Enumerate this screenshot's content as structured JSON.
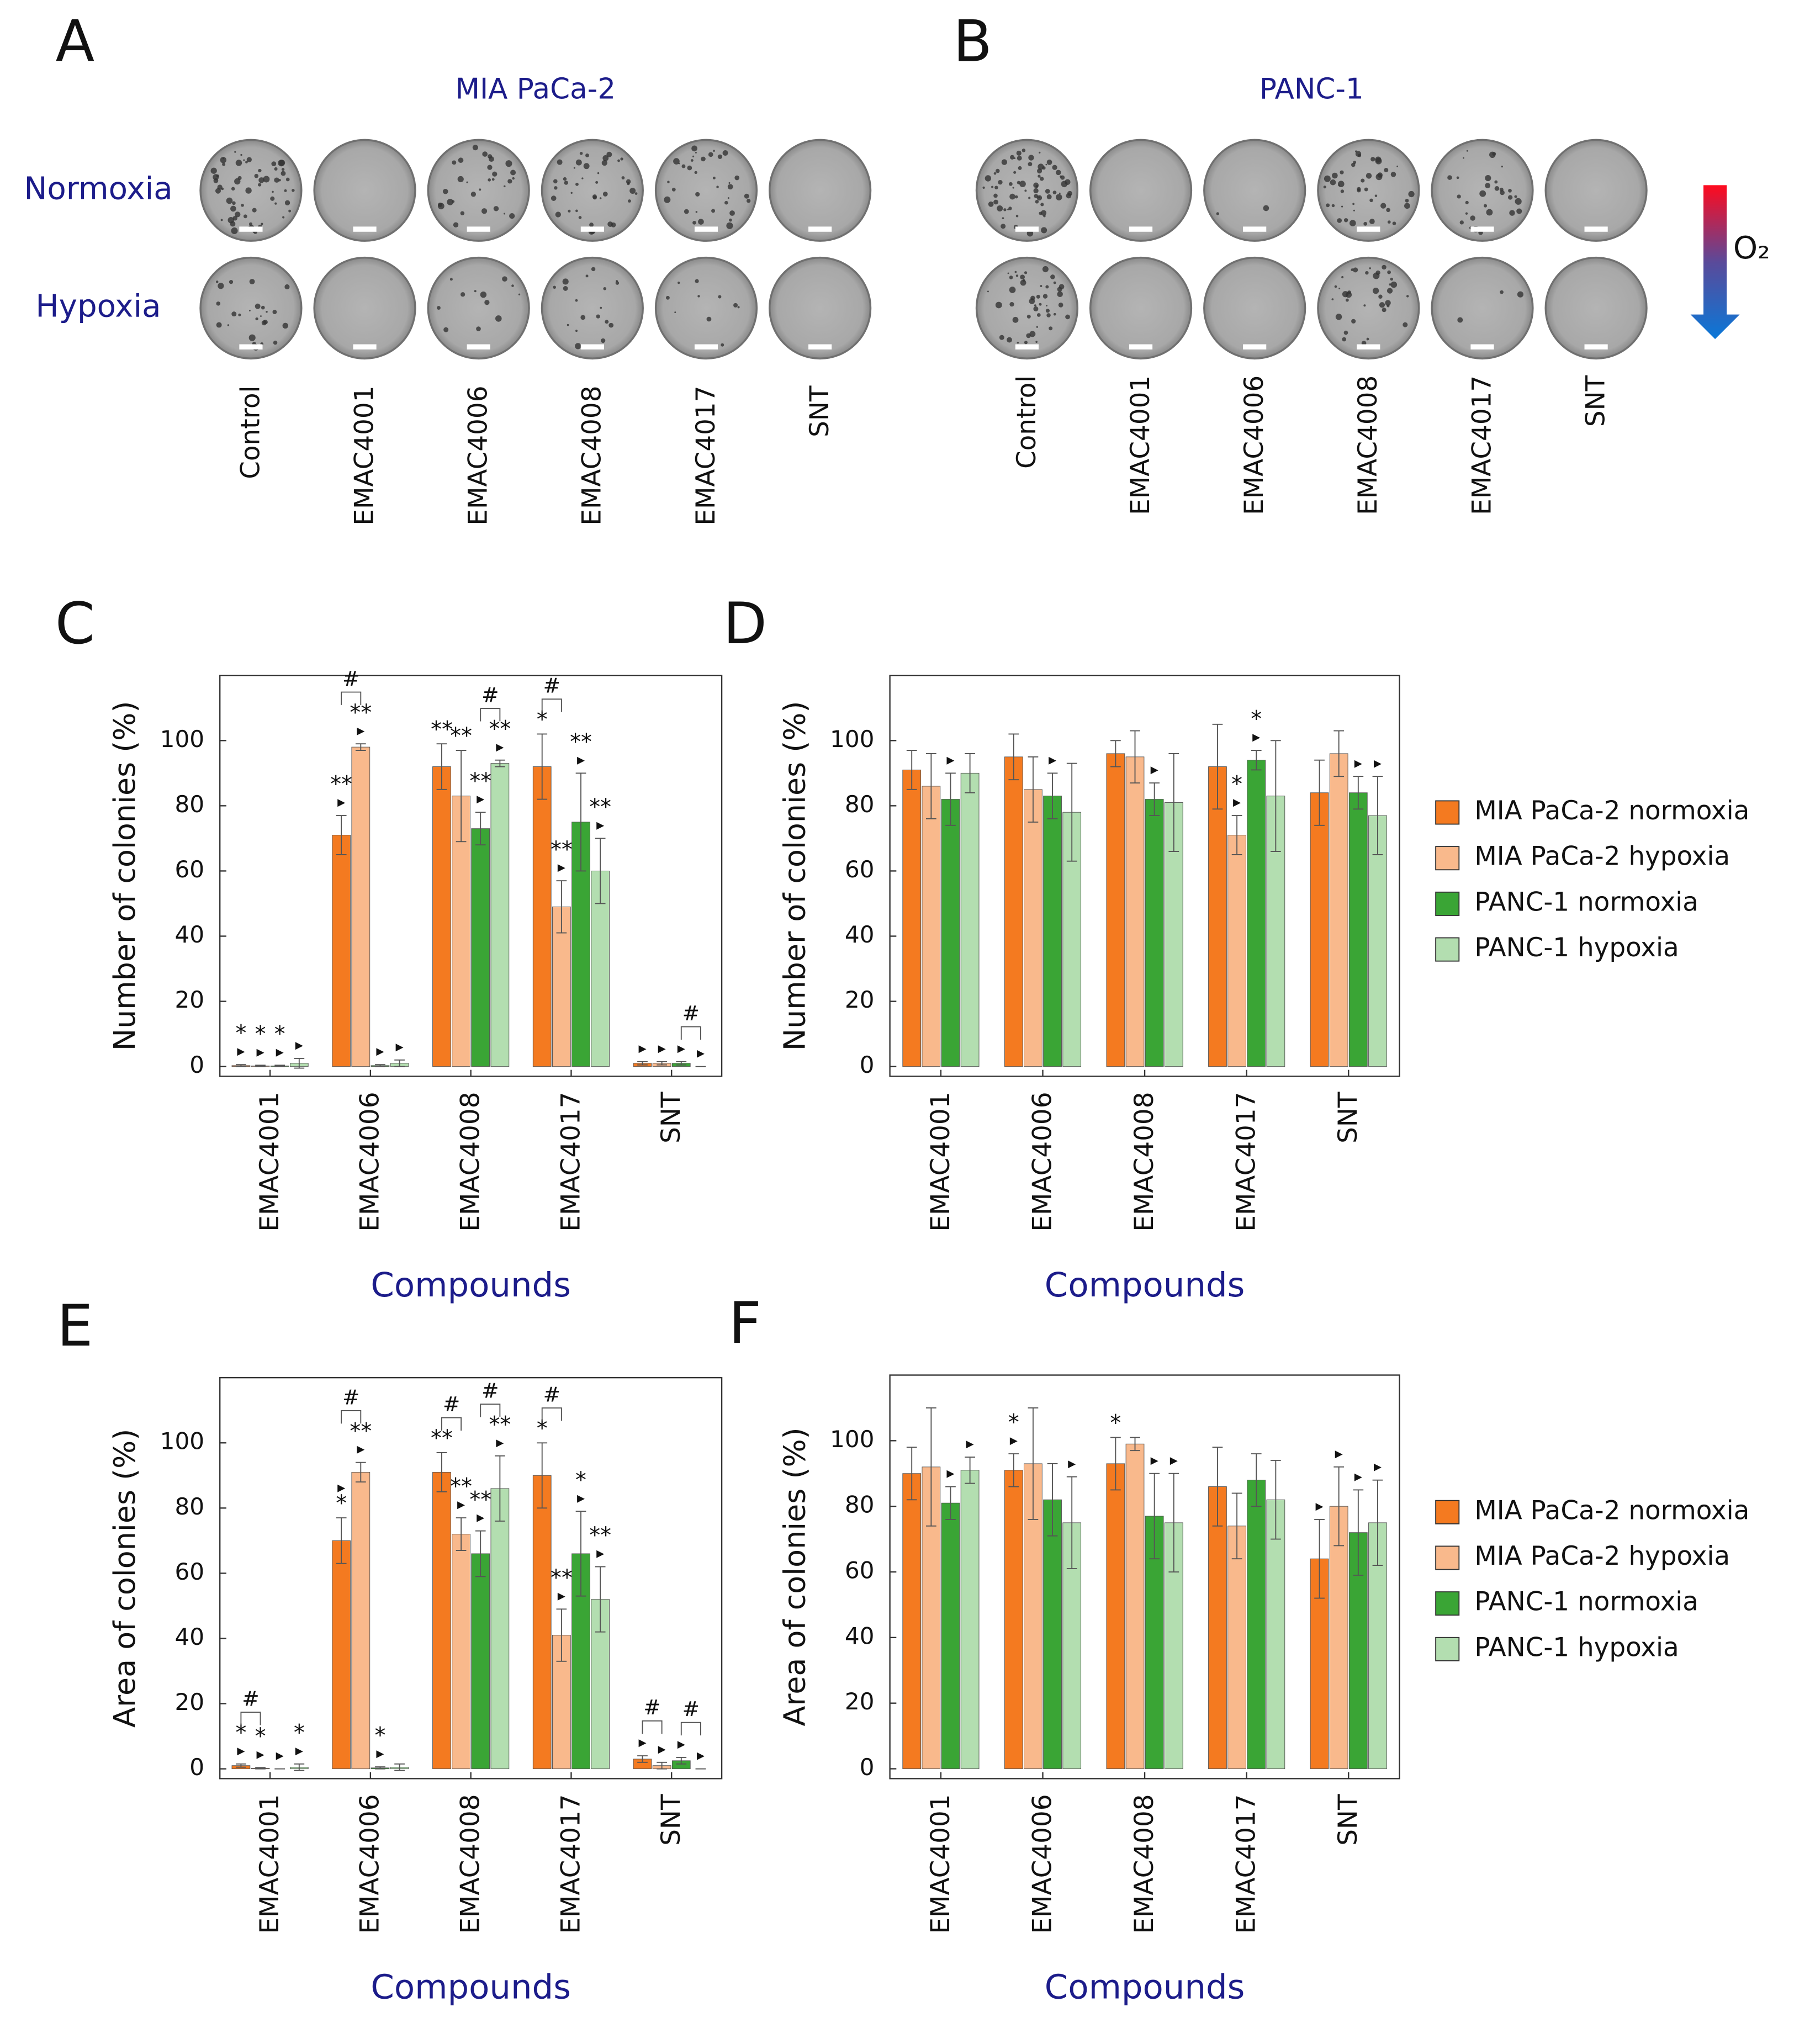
{
  "images": [
    {
      "label": "A",
      "title": "MIA PaCa-2",
      "columns": [
        "Control",
        "EMAC4001",
        "EMAC4006",
        "EMAC4008",
        "EMAC4017",
        "SNT"
      ]
    },
    {
      "label": "B",
      "title": "PANC-1",
      "columns": [
        "Control",
        "EMAC4001",
        "EMAC4006",
        "EMAC4008",
        "EMAC4017",
        "SNT"
      ]
    }
  ],
  "row_labels": [
    "Normoxia",
    "Hypoxia"
  ],
  "o2_label": "O₂",
  "chart_data": [
    {
      "label": "C",
      "type": "bar",
      "ylabel": "Number of colonies (%)",
      "xlabel": "Compounds",
      "categories": [
        "EMAC4001",
        "EMAC4006",
        "EMAC4008",
        "EMAC4017",
        "SNT"
      ],
      "ylim": [
        -3,
        120
      ],
      "yticks": [
        0,
        20,
        40,
        60,
        80,
        100
      ],
      "series": [
        {
          "color": "#f47a20",
          "values": [
            0.3,
            71,
            92,
            92,
            1
          ],
          "errors": [
            0.3,
            6,
            7,
            10,
            0.5
          ],
          "marks": [
            [
              "*",
              "▸"
            ],
            [
              "**",
              "▸"
            ],
            [
              "**"
            ],
            [
              "*"
            ],
            [
              "▸"
            ]
          ]
        },
        {
          "color": "#f9b98c",
          "values": [
            0.2,
            98,
            83,
            49,
            1
          ],
          "errors": [
            0.2,
            1,
            14,
            8,
            0.5
          ],
          "marks": [
            [
              "*",
              "▸"
            ],
            [
              "**",
              "▸"
            ],
            [
              "**"
            ],
            [
              "**",
              "▸"
            ],
            [
              "▸"
            ]
          ]
        },
        {
          "color": "#3aa535",
          "values": [
            0.2,
            0.3,
            73,
            75,
            1
          ],
          "errors": [
            0.2,
            0.3,
            5,
            15,
            0.5
          ],
          "marks": [
            [
              "*",
              "▸"
            ],
            [
              "▸"
            ],
            [
              "**",
              "▸"
            ],
            [
              "**",
              "▸"
            ],
            [
              "▸"
            ]
          ]
        },
        {
          "color": "#b3deb0",
          "values": [
            1,
            1,
            93,
            60,
            0
          ],
          "errors": [
            1.5,
            1,
            1,
            10,
            0
          ],
          "marks": [
            [
              "▸"
            ],
            [
              "▸"
            ],
            [
              "**",
              "▸"
            ],
            [
              "**",
              "▸"
            ],
            [
              "▸"
            ]
          ]
        }
      ],
      "brackets": [
        {
          "category": 1,
          "series": [
            0,
            1
          ],
          "label": "#"
        },
        {
          "category": 2,
          "series": [
            2,
            3
          ],
          "label": "#"
        },
        {
          "category": 3,
          "series": [
            0,
            1
          ],
          "label": "#"
        },
        {
          "category": 4,
          "series": [
            2,
            3
          ],
          "label": "#"
        }
      ]
    },
    {
      "label": "D",
      "type": "bar",
      "ylabel": "Number of colonies (%)",
      "xlabel": "Compounds",
      "categories": [
        "EMAC4001",
        "EMAC4006",
        "EMAC4008",
        "EMAC4017",
        "SNT"
      ],
      "ylim": [
        -3,
        120
      ],
      "yticks": [
        0,
        20,
        40,
        60,
        80,
        100
      ],
      "legend": "right",
      "series": [
        {
          "name": "MIA PaCa-2 normoxia",
          "color": "#f47a20",
          "values": [
            91,
            95,
            96,
            92,
            84
          ],
          "errors": [
            6,
            7,
            4,
            13,
            10
          ],
          "marks": [
            null,
            null,
            null,
            null,
            null
          ]
        },
        {
          "name": "MIA PaCa-2 hypoxia",
          "color": "#f9b98c",
          "values": [
            86,
            85,
            95,
            71,
            96
          ],
          "errors": [
            10,
            10,
            8,
            6,
            7
          ],
          "marks": [
            null,
            null,
            null,
            [
              "*",
              "▸"
            ],
            null
          ]
        },
        {
          "name": "PANC-1 normoxia",
          "color": "#3aa535",
          "values": [
            82,
            83,
            82,
            94,
            84
          ],
          "errors": [
            8,
            7,
            5,
            3,
            5
          ],
          "marks": [
            [
              "▸"
            ],
            [
              "▸"
            ],
            [
              "▸"
            ],
            [
              "*",
              "▸"
            ],
            [
              "▸"
            ]
          ]
        },
        {
          "name": "PANC-1 hypoxia",
          "color": "#b3deb0",
          "values": [
            90,
            78,
            81,
            83,
            77
          ],
          "errors": [
            6,
            15,
            15,
            17,
            12
          ],
          "marks": [
            null,
            null,
            null,
            null,
            [
              "▸"
            ]
          ]
        }
      ]
    },
    {
      "label": "E",
      "type": "bar",
      "ylabel": "Area of colonies (%)",
      "xlabel": "Compounds",
      "categories": [
        "EMAC4001",
        "EMAC4006",
        "EMAC4008",
        "EMAC4017",
        "SNT"
      ],
      "ylim": [
        -3,
        120
      ],
      "yticks": [
        0,
        20,
        40,
        60,
        80,
        100
      ],
      "series": [
        {
          "color": "#f47a20",
          "values": [
            1,
            70,
            91,
            90,
            3
          ],
          "errors": [
            0.5,
            7,
            6,
            10,
            1
          ],
          "marks": [
            [
              "*",
              "▸"
            ],
            [
              "▸",
              "*"
            ],
            [
              "**"
            ],
            [
              "*"
            ],
            [
              "▸"
            ]
          ]
        },
        {
          "color": "#f9b98c",
          "values": [
            0.2,
            91,
            72,
            41,
            1
          ],
          "errors": [
            0.2,
            3,
            5,
            8,
            1
          ],
          "marks": [
            [
              "*",
              "▸"
            ],
            [
              "**",
              "▸"
            ],
            [
              "**",
              "▸"
            ],
            [
              "**",
              "▸"
            ],
            [
              "▸"
            ]
          ]
        },
        {
          "color": "#3aa535",
          "values": [
            0,
            0.3,
            66,
            66,
            2.5
          ],
          "errors": [
            0,
            0.3,
            7,
            13,
            1
          ],
          "marks": [
            [
              "▸"
            ],
            [
              "*",
              "▸"
            ],
            [
              "**",
              "▸"
            ],
            [
              "*",
              "▸"
            ],
            [
              "▸"
            ]
          ]
        },
        {
          "color": "#b3deb0",
          "values": [
            0.5,
            0.5,
            86,
            52,
            0
          ],
          "errors": [
            1,
            1,
            10,
            10,
            0
          ],
          "marks": [
            [
              "*",
              "▸"
            ],
            null,
            [
              "**",
              "▸"
            ],
            [
              "**",
              "▸"
            ],
            [
              "▸"
            ]
          ]
        }
      ],
      "brackets": [
        {
          "category": 0,
          "series": [
            0,
            1
          ],
          "label": "#"
        },
        {
          "category": 1,
          "series": [
            0,
            1
          ],
          "label": "#"
        },
        {
          "category": 2,
          "series": [
            0,
            1
          ],
          "label": "#"
        },
        {
          "category": 2,
          "series": [
            2,
            3
          ],
          "label": "#"
        },
        {
          "category": 3,
          "series": [
            0,
            1
          ],
          "label": "#"
        },
        {
          "category": 4,
          "series": [
            0,
            1
          ],
          "label": "#"
        },
        {
          "category": 4,
          "series": [
            2,
            3
          ],
          "label": "#"
        }
      ]
    },
    {
      "label": "F",
      "type": "bar",
      "ylabel": "Area of colonies (%)",
      "xlabel": "Compounds",
      "categories": [
        "EMAC4001",
        "EMAC4006",
        "EMAC4008",
        "EMAC4017",
        "SNT"
      ],
      "ylim": [
        -3,
        120
      ],
      "yticks": [
        0,
        20,
        40,
        60,
        80,
        100
      ],
      "legend": "right",
      "series": [
        {
          "name": "MIA PaCa-2 normoxia",
          "color": "#f47a20",
          "values": [
            90,
            91,
            93,
            86,
            64
          ],
          "errors": [
            8,
            5,
            8,
            12,
            12
          ],
          "marks": [
            null,
            [
              "*",
              "▸"
            ],
            [
              "*"
            ],
            null,
            [
              "▸"
            ]
          ]
        },
        {
          "name": "MIA PaCa-2 hypoxia",
          "color": "#f9b98c",
          "values": [
            92,
            93,
            99,
            74,
            80
          ],
          "errors": [
            18,
            17,
            2,
            10,
            12
          ],
          "marks": [
            null,
            null,
            null,
            null,
            [
              "▸"
            ]
          ]
        },
        {
          "name": "PANC-1 normoxia",
          "color": "#3aa535",
          "values": [
            81,
            82,
            77,
            88,
            72
          ],
          "errors": [
            5,
            11,
            13,
            8,
            13
          ],
          "marks": [
            [
              "▸"
            ],
            null,
            [
              "▸"
            ],
            null,
            [
              "▸"
            ]
          ]
        },
        {
          "name": "PANC-1 hypoxia",
          "color": "#b3deb0",
          "values": [
            91,
            75,
            75,
            82,
            75
          ],
          "errors": [
            4,
            14,
            15,
            12,
            13
          ],
          "marks": [
            [
              "▸"
            ],
            [
              "▸"
            ],
            [
              "▸"
            ],
            null,
            [
              "▸"
            ]
          ]
        }
      ]
    }
  ]
}
